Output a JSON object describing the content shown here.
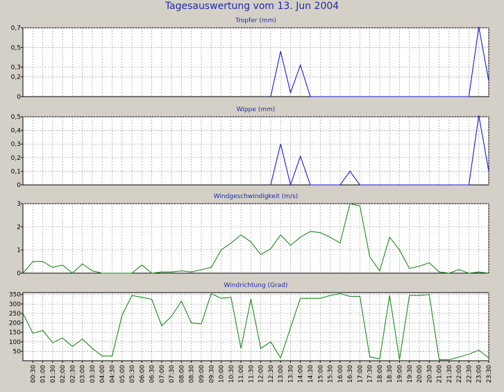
{
  "title": "Tagesauswertung vom 13. Jun 2004",
  "colors": {
    "background": "#d4d0c8",
    "title": "#1e2aa6",
    "panel_bg": "#ffffff",
    "grid": "#9a9a9a",
    "blue": "#1a1ad2",
    "green": "#1a8a1a"
  },
  "x_ticks": [
    "00:30",
    "01:00",
    "01:30",
    "02:00",
    "02:30",
    "03:00",
    "03:30",
    "04:00",
    "04:30",
    "05:00",
    "05:30",
    "06:00",
    "06:30",
    "07:00",
    "07:30",
    "08:00",
    "08:30",
    "09:00",
    "09:30",
    "10:00",
    "10:30",
    "11:00",
    "11:30",
    "12:00",
    "12:30",
    "13:00",
    "13:30",
    "14:00",
    "14:30",
    "15:00",
    "15:30",
    "16:00",
    "16:30",
    "17:00",
    "17:30",
    "18:00",
    "18:30",
    "19:00",
    "19:30",
    "20:00",
    "20:30",
    "21:00",
    "21:30",
    "22:00",
    "22:30",
    "23:00",
    "23:30"
  ],
  "chart_data": [
    {
      "type": "line",
      "title": "Tropfer (mm)",
      "color": "#1a1ad2",
      "ylim": [
        0,
        0.7
      ],
      "yticks": [
        0,
        0.2,
        0.3,
        0.5,
        0.7
      ],
      "ytick_labels": [
        "0",
        "0,2",
        "0,3",
        "0,5",
        "0,7"
      ],
      "grid": true,
      "x": [
        "12:30",
        "13:00",
        "13:30",
        "14:00",
        "14:30",
        "22:30",
        "23:00",
        "23:30"
      ],
      "values": [
        0,
        0.46,
        0.04,
        0.32,
        0,
        0,
        0.71,
        0.16
      ]
    },
    {
      "type": "line",
      "title": "Wippe (mm)",
      "color": "#1a1ad2",
      "ylim": [
        0,
        0.5
      ],
      "yticks": [
        0,
        0.1,
        0.2,
        0.3,
        0.4,
        0.5
      ],
      "ytick_labels": [
        "0",
        "0,1",
        "0,2",
        "0,3",
        "0,4",
        "0,5"
      ],
      "grid": true,
      "x": [
        "12:30",
        "13:00",
        "13:30",
        "14:00",
        "14:30",
        "16:00",
        "16:30",
        "17:00",
        "22:30",
        "23:00",
        "23:30"
      ],
      "values": [
        0,
        0.3,
        0,
        0.21,
        0,
        0,
        0.1,
        0,
        0,
        0.51,
        0.1
      ]
    },
    {
      "type": "line",
      "title": "Windgeschwindigkeit (m/s)",
      "color": "#1a8a1a",
      "ylim": [
        0,
        3
      ],
      "yticks": [
        0,
        1,
        2,
        3
      ],
      "ytick_labels": [
        "0",
        "1",
        "2",
        "3"
      ],
      "grid": true,
      "x": [
        "00:00",
        "00:30",
        "01:00",
        "01:30",
        "02:00",
        "02:30",
        "03:00",
        "03:30",
        "04:00",
        "04:30",
        "05:00",
        "05:30",
        "06:00",
        "06:30",
        "07:00",
        "07:30",
        "08:00",
        "08:30",
        "09:00",
        "09:30",
        "10:00",
        "10:30",
        "11:00",
        "11:30",
        "12:00",
        "12:30",
        "13:00",
        "13:30",
        "14:00",
        "14:30",
        "15:00",
        "15:30",
        "16:00",
        "16:30",
        "17:00",
        "17:30",
        "18:00",
        "18:30",
        "19:00",
        "19:30",
        "20:00",
        "20:30",
        "21:00",
        "21:30",
        "22:00",
        "22:30",
        "23:00",
        "23:30"
      ],
      "values": [
        0,
        0.5,
        0.5,
        0.25,
        0.35,
        0,
        0.4,
        0.1,
        0,
        0,
        0,
        0,
        0.35,
        0,
        0.05,
        0.05,
        0.1,
        0.05,
        0.15,
        0.25,
        1,
        1.3,
        1.65,
        1.35,
        0.8,
        1.05,
        1.65,
        1.2,
        1.55,
        1.8,
        1.75,
        1.55,
        1.3,
        3,
        2.9,
        0.7,
        0.1,
        1.55,
        1,
        0.2,
        0.3,
        0.45,
        0.05,
        0,
        0.15,
        0,
        0.05,
        0
      ]
    },
    {
      "type": "line",
      "title": "Windrichtung (Grad)",
      "color": "#1a8a1a",
      "ylim": [
        0,
        360
      ],
      "yticks": [
        50,
        100,
        150,
        200,
        250,
        300,
        350
      ],
      "ytick_labels": [
        "50",
        "100",
        "150",
        "200",
        "250",
        "300",
        "350"
      ],
      "grid": true,
      "x": [
        "00:00",
        "00:30",
        "01:00",
        "01:30",
        "02:00",
        "02:30",
        "03:00",
        "03:30",
        "04:00",
        "04:30",
        "05:00",
        "05:30",
        "06:00",
        "06:30",
        "07:00",
        "07:30",
        "08:00",
        "08:30",
        "09:00",
        "09:30",
        "10:00",
        "10:30",
        "11:00",
        "11:30",
        "12:00",
        "12:30",
        "13:00",
        "13:30",
        "14:00",
        "14:30",
        "15:00",
        "15:30",
        "16:00",
        "16:30",
        "17:00",
        "17:30",
        "18:00",
        "18:30",
        "19:00",
        "19:30",
        "20:00",
        "20:30",
        "21:00",
        "21:30",
        "22:00",
        "22:30",
        "23:00",
        "23:30"
      ],
      "values": [
        250,
        145,
        160,
        95,
        120,
        75,
        115,
        65,
        25,
        25,
        240,
        345,
        335,
        325,
        185,
        235,
        315,
        200,
        195,
        355,
        330,
        335,
        65,
        325,
        65,
        100,
        15,
        175,
        330,
        330,
        330,
        345,
        355,
        340,
        340,
        20,
        10,
        345,
        5,
        345,
        345,
        350,
        5,
        5,
        20,
        35,
        55,
        15
      ]
    }
  ]
}
